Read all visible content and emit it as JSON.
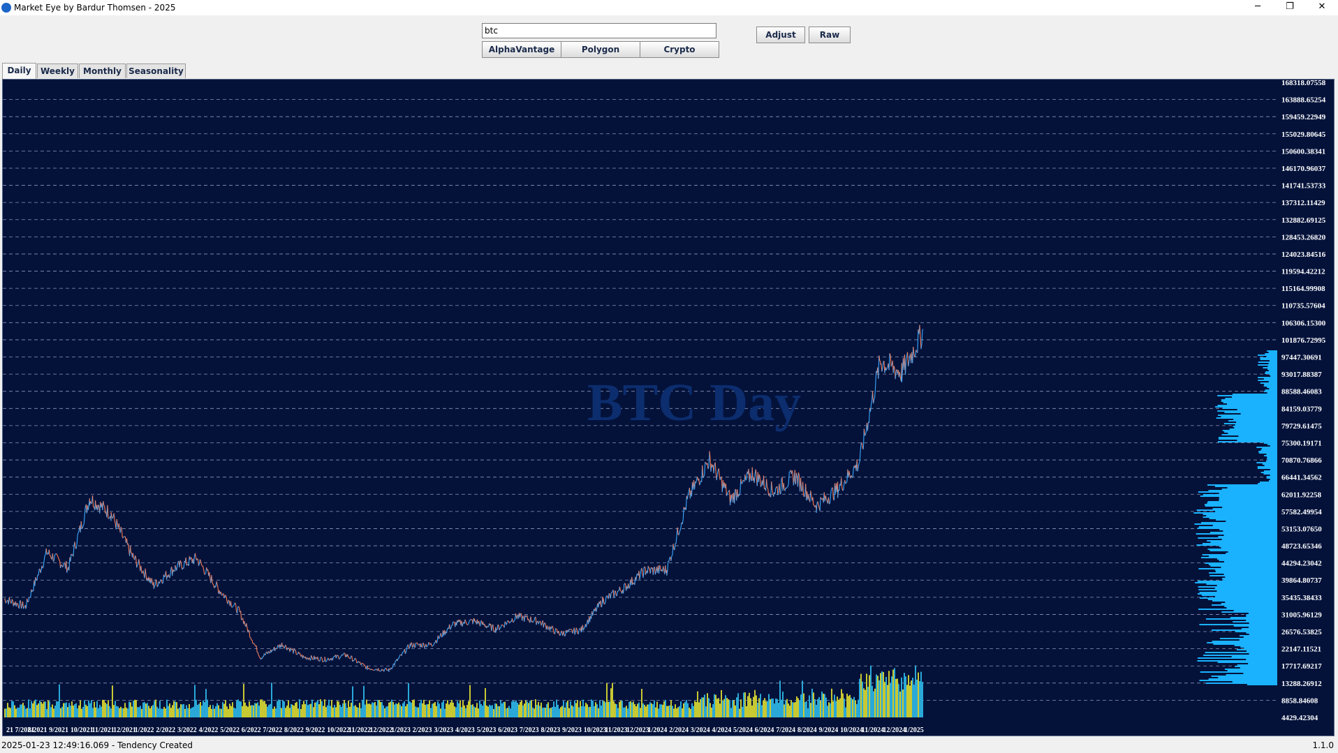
{
  "window": {
    "title": "Market Eye by Bardur Thomsen - 2025",
    "minimize": "─",
    "maximize": "❐",
    "close": "✕"
  },
  "search": {
    "value": "btc"
  },
  "sources": [
    "AlphaVantage",
    "Polygon",
    "Crypto"
  ],
  "actions": {
    "adjust": "Adjust",
    "raw": "Raw"
  },
  "tabs": [
    "Daily",
    "Weekly",
    "Monthly",
    "Seasonality"
  ],
  "status": {
    "message": "2025-01-23 12:49:16.069 - Tendency Created",
    "version": "1.1.0"
  },
  "chart_data": {
    "type": "line",
    "title": "BTC Day",
    "ylim": [
      4429.42304,
      168318.07558
    ],
    "ytick_labels": [
      "168318.07558",
      "163888.65254",
      "159459.22949",
      "155029.80645",
      "150600.38341",
      "146170.96037",
      "141741.53733",
      "137312.11429",
      "132882.69125",
      "128453.26820",
      "124023.84516",
      "119594.42212",
      "115164.99908",
      "110735.57604",
      "106306.15300",
      "101876.72995",
      "97447.30691",
      "93017.88387",
      "88588.46083",
      "84159.03779",
      "79729.61475",
      "75300.19171",
      "70870.76866",
      "66441.34562",
      "62011.92258",
      "57582.49954",
      "53153.07650",
      "48723.65346",
      "44294.23042",
      "39864.80737",
      "35435.38433",
      "31005.96129",
      "26576.53825",
      "22147.11521",
      "17717.69217",
      "13288.26912",
      "8858.84608",
      "4429.42304"
    ],
    "xtick_labels": [
      "21 7/2021",
      "8/2021",
      "9/2021",
      "10/2021",
      "11/2021",
      "12/2021",
      "1/2022",
      "2/2022",
      "3/2022",
      "4/2022",
      "5/2022",
      "6/2022",
      "7/2022",
      "8/2022",
      "9/2022",
      "10/2022",
      "11/2022",
      "12/2022",
      "1/2023",
      "2/2023",
      "3/2023",
      "4/2023",
      "5/2023",
      "6/2023",
      "7/2023",
      "8/2023",
      "9/2023",
      "10/2023",
      "11/2023",
      "12/2023",
      "1/2024",
      "2/2024",
      "3/2024",
      "4/2024",
      "5/2024",
      "6/2024",
      "7/2024",
      "8/2024",
      "9/2024",
      "10/2024",
      "11/2024",
      "12/2024",
      "1/2025"
    ],
    "price_series": {
      "x": [
        "2021-06",
        "2021-07",
        "2021-08",
        "2021-09",
        "2021-10",
        "2021-11",
        "2021-12",
        "2022-01",
        "2022-02",
        "2022-03",
        "2022-04",
        "2022-05",
        "2022-06",
        "2022-07",
        "2022-08",
        "2022-09",
        "2022-10",
        "2022-11",
        "2022-12",
        "2023-01",
        "2023-02",
        "2023-03",
        "2023-04",
        "2023-05",
        "2023-06",
        "2023-07",
        "2023-08",
        "2023-09",
        "2023-10",
        "2023-11",
        "2023-12",
        "2024-01",
        "2024-02",
        "2024-03",
        "2024-04",
        "2024-05",
        "2024-06",
        "2024-07",
        "2024-08",
        "2024-09",
        "2024-10",
        "2024-11",
        "2024-12",
        "2025-01"
      ],
      "values": [
        35000,
        33000,
        47000,
        43000,
        61000,
        57000,
        46000,
        38500,
        43000,
        45500,
        37700,
        31800,
        19900,
        23300,
        20000,
        19400,
        20500,
        17200,
        16600,
        23100,
        23200,
        28500,
        29300,
        27200,
        30500,
        29200,
        26000,
        27000,
        34500,
        37800,
        42300,
        42500,
        61000,
        71000,
        60600,
        67500,
        62700,
        66800,
        59000,
        63300,
        70200,
        96400,
        93400,
        104000
      ]
    },
    "colors": {
      "background": "#04123a",
      "grid": "#8a96b8",
      "up": "#3aa9ff",
      "down": "#ff7a50",
      "volume": "#c8c832",
      "volume_alt": "#2aa9d8",
      "profile": "#1ab2ff",
      "watermark": "#0c2d6e"
    }
  }
}
